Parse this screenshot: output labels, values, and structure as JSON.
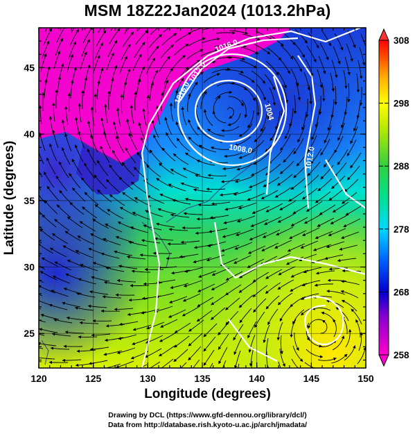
{
  "title": "MSM 18Z22Jan2024 (1013.2hPa)",
  "x_axis": {
    "label": "Longitude (degrees)",
    "range": [
      120,
      150
    ],
    "ticks": [
      "120",
      "125",
      "130",
      "135",
      "140",
      "145",
      "150"
    ]
  },
  "y_axis": {
    "label": "Latitude  (degrees)",
    "range": [
      22.4,
      48
    ],
    "ticks": [
      "25",
      "30",
      "35",
      "40",
      "45"
    ]
  },
  "colorbar": {
    "labels": [
      "308",
      "298",
      "288",
      "278",
      "268",
      "258"
    ],
    "min": 258,
    "max": 308
  },
  "contour_labels": [
    "1016.0",
    "1012.0",
    "1016.0",
    "1004",
    "1008.0",
    "1012.0"
  ],
  "credits": {
    "line1": "Drawing by DCL (https://www.gfd-dennou.org/library/dcl/)",
    "line2": "Data from http://database.rish.kyoto-u.ac.jp/arch/jmadata/"
  },
  "colors": {
    "warm": "#ff0000",
    "green": "#33cc33",
    "cyan": "#00e0e0",
    "blue": "#1a3fd0",
    "magenta": "#ff00cc"
  }
}
